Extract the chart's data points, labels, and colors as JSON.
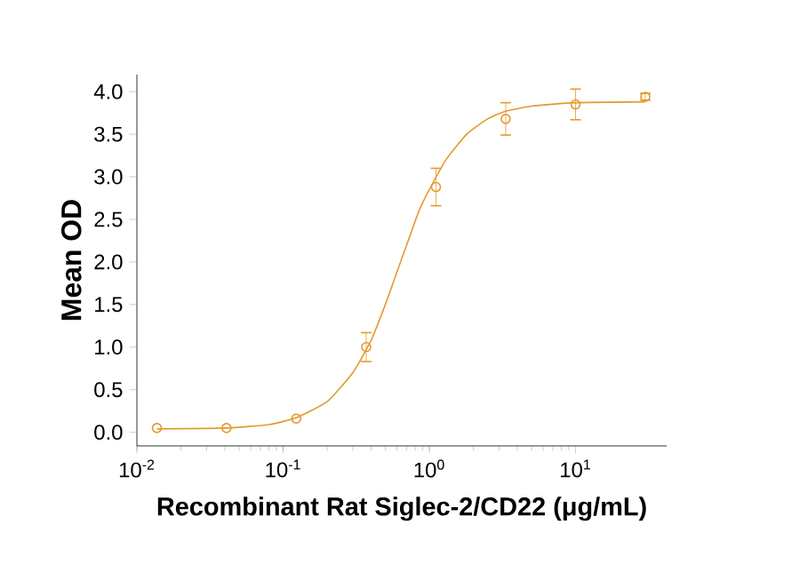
{
  "chart_data": {
    "type": "scatter",
    "xlabel": "Recombinant Rat Siglec-2/CD22 (μg/mL)",
    "ylabel": "Mean OD",
    "log": "x",
    "xlim": [
      0.01,
      42
    ],
    "ylim": [
      -0.16,
      4.2
    ],
    "xticks": [
      {
        "value": 0.01,
        "label": "10$^{-2}$"
      },
      {
        "value": 0.1,
        "label": "10$^{-1}$"
      },
      {
        "value": 1,
        "label": "10$^{0}$"
      },
      {
        "value": 10,
        "label": "10$^{1}$"
      }
    ],
    "yticks": [
      {
        "value": 0,
        "label": "0.0"
      },
      0.5,
      {
        "value": 1,
        "label": "1.0"
      },
      1.5,
      {
        "value": 2,
        "label": "2.0"
      },
      2.5,
      {
        "value": 3,
        "label": "3.0"
      },
      3.5,
      {
        "value": 4,
        "label": "4.0"
      }
    ],
    "series": [
      {
        "marker": "circle",
        "color": "#e39a2c",
        "x": [
          0.0137,
          0.041,
          0.123,
          0.37,
          1.11,
          3.33,
          10,
          30
        ],
        "values": [
          0.05,
          0.05,
          0.16,
          1.0,
          2.88,
          3.68,
          3.85,
          3.94
        ],
        "errors": [
          null,
          null,
          null,
          0.17,
          0.22,
          0.19,
          0.18,
          0.04
        ]
      },
      {
        "type": "line",
        "marker": "none",
        "color": "#e39a2c",
        "x": [
          0.0137,
          0.041,
          0.08,
          0.123,
          0.2,
          0.3,
          0.4,
          0.5,
          0.6,
          0.7,
          0.85,
          1.0,
          1.3,
          1.8,
          2.5,
          3.33,
          5,
          10,
          30
        ],
        "values": [
          0.04,
          0.05,
          0.09,
          0.17,
          0.36,
          0.7,
          1.08,
          1.5,
          1.88,
          2.2,
          2.6,
          2.85,
          3.2,
          3.5,
          3.68,
          3.77,
          3.83,
          3.87,
          3.88
        ]
      }
    ]
  }
}
